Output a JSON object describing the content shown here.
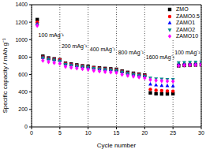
{
  "chart_data": {
    "type": "scatter",
    "x_label": "Cycle number",
    "y_label": "Specific capacity / mAh g⁻¹",
    "x": [
      1,
      2,
      3,
      4,
      5,
      6,
      7,
      8,
      9,
      10,
      11,
      12,
      13,
      14,
      15,
      16,
      17,
      18,
      19,
      20,
      21,
      22,
      23,
      24,
      25,
      26,
      27,
      28,
      29,
      30
    ],
    "series": [
      {
        "name": "ZMO",
        "color": "#000000",
        "marker": "square",
        "values": [
          1230,
          810,
          790,
          780,
          770,
          730,
          720,
          710,
          700,
          695,
          680,
          675,
          670,
          665,
          660,
          640,
          625,
          615,
          605,
          595,
          390,
          380,
          378,
          378,
          380,
          700,
          705,
          708,
          710,
          712
        ]
      },
      {
        "name": "ZAMO0.5",
        "color": "#ff0000",
        "marker": "circle",
        "values": [
          1200,
          800,
          785,
          775,
          768,
          725,
          715,
          705,
          698,
          690,
          678,
          670,
          665,
          660,
          655,
          635,
          620,
          610,
          600,
          590,
          430,
          420,
          415,
          412,
          410,
          715,
          718,
          720,
          722,
          725
        ]
      },
      {
        "name": "ZAMO1",
        "color": "#0000ff",
        "marker": "triangle",
        "values": [
          1180,
          795,
          780,
          770,
          760,
          720,
          710,
          700,
          692,
          685,
          672,
          665,
          660,
          655,
          650,
          630,
          615,
          605,
          595,
          585,
          490,
          480,
          475,
          472,
          470,
          725,
          728,
          730,
          732,
          735
        ]
      },
      {
        "name": "ZAMO2",
        "color": "#008b8b",
        "marker": "triangle_down",
        "values": [
          1170,
          790,
          775,
          765,
          755,
          715,
          705,
          697,
          690,
          683,
          670,
          663,
          657,
          652,
          647,
          628,
          612,
          602,
          592,
          580,
          560,
          552,
          548,
          545,
          543,
          735,
          738,
          740,
          742,
          745
        ]
      },
      {
        "name": "ZAMO10",
        "color": "#ff00ff",
        "marker": "diamond",
        "values": [
          1160,
          760,
          745,
          735,
          725,
          690,
          680,
          672,
          665,
          658,
          645,
          638,
          632,
          627,
          622,
          600,
          588,
          578,
          570,
          560,
          540,
          532,
          528,
          525,
          522,
          700,
          705,
          708,
          710,
          712
        ]
      }
    ],
    "annotations": [
      {
        "text": "100 mAg⁻¹",
        "x": 1.2,
        "y": 1050
      },
      {
        "text": "200 mAg⁻¹",
        "x": 5.3,
        "y": 930
      },
      {
        "text": "400 mAg⁻¹",
        "x": 10.3,
        "y": 890
      },
      {
        "text": "800 mAg⁻¹",
        "x": 15.3,
        "y": 850
      },
      {
        "text": "1600 mAg⁻¹",
        "x": 20.2,
        "y": 800
      },
      {
        "text": "100 mAg⁻¹",
        "x": 25.3,
        "y": 850
      }
    ],
    "xlim": [
      0,
      30
    ],
    "xticks": [
      0,
      5,
      10,
      15,
      20,
      25,
      30
    ],
    "ylim": [
      0,
      1400
    ],
    "yticks": [
      0,
      200,
      400,
      600,
      800,
      1000,
      1200,
      1400
    ],
    "grid": true,
    "legend": "upper right"
  }
}
